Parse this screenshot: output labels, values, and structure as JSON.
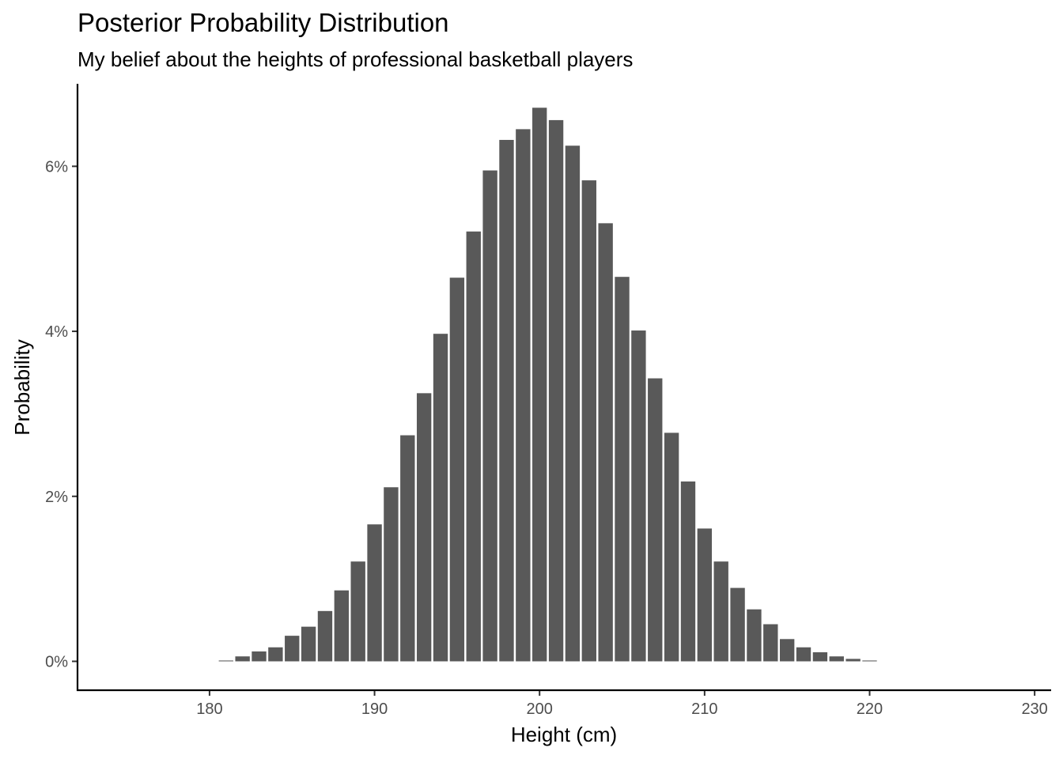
{
  "chart_data": {
    "type": "bar",
    "title": "Posterior Probability Distribution",
    "subtitle": "My belief about the heights of professional basketball players",
    "xlabel": "Height (cm)",
    "ylabel": "Probability",
    "xlim": [
      172,
      231
    ],
    "ylim": [
      -0.0035,
      0.07
    ],
    "x_ticks": [
      180,
      190,
      200,
      210,
      220,
      230
    ],
    "x_tick_labels": [
      "180",
      "190",
      "200",
      "210",
      "220",
      "230"
    ],
    "y_ticks": [
      0,
      0.02,
      0.04,
      0.06
    ],
    "y_tick_labels": [
      "0%",
      "2%",
      "4%",
      "6%"
    ],
    "grid": false,
    "bar_color": "#595959",
    "bar_width": 0.88,
    "x": [
      181,
      182,
      183,
      184,
      185,
      186,
      187,
      188,
      189,
      190,
      191,
      192,
      193,
      194,
      195,
      196,
      197,
      198,
      199,
      200,
      201,
      202,
      203,
      204,
      205,
      206,
      207,
      208,
      209,
      210,
      211,
      212,
      213,
      214,
      215,
      216,
      217,
      218,
      219,
      220
    ],
    "values": [
      0.0001,
      0.0006,
      0.0012,
      0.0017,
      0.0031,
      0.0042,
      0.0061,
      0.0086,
      0.0121,
      0.0166,
      0.0211,
      0.0274,
      0.0325,
      0.0397,
      0.0465,
      0.0521,
      0.0595,
      0.0632,
      0.0645,
      0.0671,
      0.0656,
      0.0625,
      0.0583,
      0.0531,
      0.0466,
      0.0401,
      0.0343,
      0.0277,
      0.0218,
      0.0161,
      0.0121,
      0.0089,
      0.0063,
      0.0045,
      0.0027,
      0.0017,
      0.0011,
      0.0006,
      0.0003,
      0.0001
    ]
  }
}
